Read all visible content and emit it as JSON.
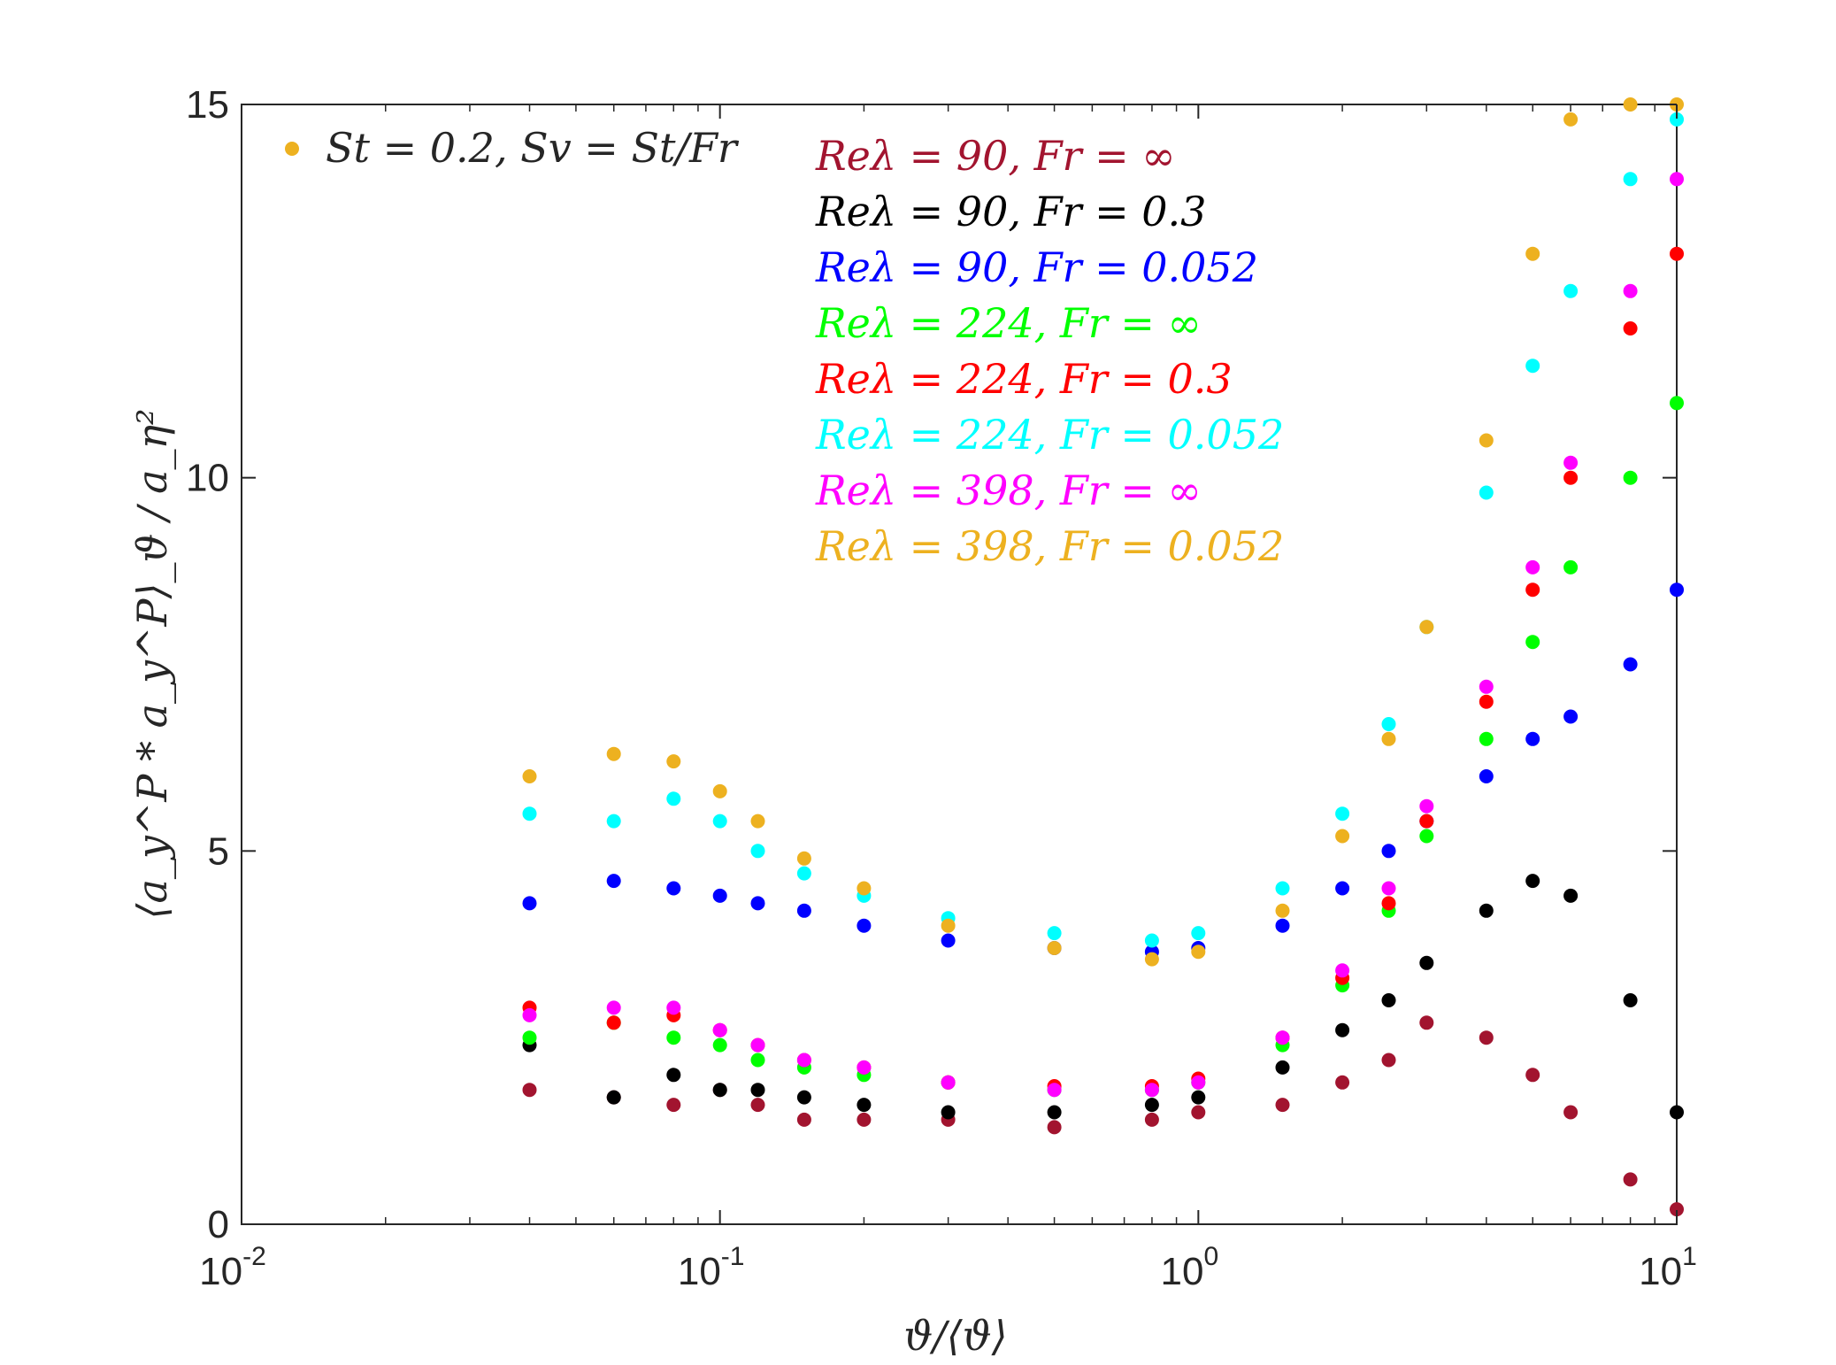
{
  "chart_data": {
    "type": "scatter",
    "xscale": "log",
    "xlim": [
      0.01,
      10
    ],
    "ylim": [
      0,
      15
    ],
    "xticks": [
      {
        "base": "10",
        "exp": "-2"
      },
      {
        "base": "10",
        "exp": "-1"
      },
      {
        "base": "10",
        "exp": "0"
      },
      {
        "base": "10",
        "exp": "1"
      }
    ],
    "yticks": [
      "0",
      "5",
      "10",
      "15"
    ],
    "xlabel": "ϑ/⟨ϑ⟩",
    "ylabel": "⟨a_y^P * a_y^P⟩_ϑ / a_η²",
    "annotation": {
      "text": "St = 0.2, Sv = St/Fr",
      "color": "#edb120"
    },
    "series": [
      {
        "name": "Reλ = 90, Fr = ∞",
        "color": "#a2142f",
        "x": [
          0.04,
          0.06,
          0.08,
          0.1,
          0.12,
          0.15,
          0.2,
          0.3,
          0.5,
          0.8,
          1.0,
          1.5,
          2.0,
          2.5,
          3.0,
          4.0,
          5.0,
          6.0,
          8.0,
          10.0
        ],
        "y": [
          1.8,
          1.7,
          1.6,
          1.8,
          1.6,
          1.4,
          1.4,
          1.4,
          1.3,
          1.4,
          1.5,
          1.6,
          1.9,
          2.2,
          2.7,
          2.5,
          2.0,
          1.5,
          0.6,
          0.2
        ]
      },
      {
        "name": "Reλ = 90, Fr = 0.3",
        "color": "#000000",
        "x": [
          0.04,
          0.06,
          0.08,
          0.1,
          0.12,
          0.15,
          0.2,
          0.3,
          0.5,
          0.8,
          1.0,
          1.5,
          2.0,
          2.5,
          3.0,
          4.0,
          5.0,
          6.0,
          8.0,
          10.0
        ],
        "y": [
          2.4,
          1.7,
          2.0,
          1.8,
          1.8,
          1.7,
          1.6,
          1.5,
          1.5,
          1.6,
          1.7,
          2.1,
          2.6,
          3.0,
          3.5,
          4.2,
          4.6,
          4.4,
          3.0,
          1.5
        ]
      },
      {
        "name": "Reλ = 90, Fr = 0.052",
        "color": "#0000ff",
        "x": [
          0.04,
          0.06,
          0.08,
          0.1,
          0.12,
          0.15,
          0.2,
          0.3,
          0.5,
          0.8,
          1.0,
          1.5,
          2.0,
          2.5,
          3.0,
          4.0,
          5.0,
          6.0,
          8.0,
          10.0
        ],
        "y": [
          4.3,
          4.6,
          4.5,
          4.4,
          4.3,
          4.2,
          4.0,
          3.8,
          3.7,
          3.65,
          3.7,
          4.0,
          4.5,
          5.0,
          5.4,
          6.0,
          6.5,
          6.8,
          7.5,
          8.5
        ]
      },
      {
        "name": "Reλ = 224, Fr = ∞",
        "color": "#00ff00",
        "x": [
          0.04,
          0.06,
          0.08,
          0.1,
          0.12,
          0.15,
          0.2,
          0.3,
          0.5,
          0.8,
          1.0,
          1.5,
          2.0,
          2.5,
          3.0,
          4.0,
          5.0,
          6.0,
          8.0,
          10.0
        ],
        "y": [
          2.5,
          2.7,
          2.5,
          2.4,
          2.2,
          2.1,
          2.0,
          1.9,
          1.8,
          1.8,
          1.9,
          2.4,
          3.2,
          4.2,
          5.2,
          6.5,
          7.8,
          8.8,
          10.0,
          11.0
        ]
      },
      {
        "name": "Reλ = 224, Fr = 0.3",
        "color": "#ff0000",
        "x": [
          0.04,
          0.06,
          0.08,
          0.1,
          0.12,
          0.15,
          0.2,
          0.3,
          0.5,
          0.8,
          1.0,
          1.5,
          2.0,
          2.5,
          3.0,
          4.0,
          5.0,
          6.0,
          8.0,
          10.0
        ],
        "y": [
          2.9,
          2.7,
          2.8,
          2.6,
          2.4,
          2.2,
          2.1,
          1.9,
          1.85,
          1.85,
          1.95,
          2.5,
          3.3,
          4.3,
          5.4,
          7.0,
          8.5,
          10.0,
          12.0,
          13.0
        ]
      },
      {
        "name": "Reλ = 224, Fr = 0.052",
        "color": "#00ffff",
        "x": [
          0.04,
          0.06,
          0.08,
          0.1,
          0.12,
          0.15,
          0.2,
          0.3,
          0.5,
          0.8,
          1.0,
          1.5,
          2.0,
          2.5,
          3.0,
          4.0,
          5.0,
          6.0,
          8.0,
          10.0
        ],
        "y": [
          5.5,
          5.4,
          5.7,
          5.4,
          5.0,
          4.7,
          4.4,
          4.1,
          3.9,
          3.8,
          3.9,
          4.5,
          5.5,
          6.7,
          8.0,
          9.8,
          11.5,
          12.5,
          14.0,
          14.8
        ]
      },
      {
        "name": "Reλ = 398, Fr = ∞",
        "color": "#ff00ff",
        "x": [
          0.04,
          0.06,
          0.08,
          0.1,
          0.12,
          0.15,
          0.2,
          0.3,
          0.5,
          0.8,
          1.0,
          1.5,
          2.0,
          2.5,
          3.0,
          4.0,
          5.0,
          6.0,
          8.0,
          10.0
        ],
        "y": [
          2.8,
          2.9,
          2.9,
          2.6,
          2.4,
          2.2,
          2.1,
          1.9,
          1.8,
          1.8,
          1.9,
          2.5,
          3.4,
          4.5,
          5.6,
          7.2,
          8.8,
          10.2,
          12.5,
          14.0
        ]
      },
      {
        "name": "Reλ = 398, Fr = 0.052",
        "color": "#edb120",
        "x": [
          0.04,
          0.06,
          0.08,
          0.1,
          0.12,
          0.15,
          0.2,
          0.3,
          0.5,
          0.8,
          1.0,
          1.5,
          2.0,
          2.5,
          3.0,
          4.0,
          5.0,
          6.0,
          8.0,
          10.0
        ],
        "y": [
          6.0,
          6.3,
          6.2,
          5.8,
          5.4,
          4.9,
          4.5,
          4.0,
          3.7,
          3.55,
          3.65,
          4.2,
          5.2,
          6.5,
          8.0,
          10.5,
          13.0,
          14.8,
          15.0,
          15.0
        ]
      }
    ]
  }
}
